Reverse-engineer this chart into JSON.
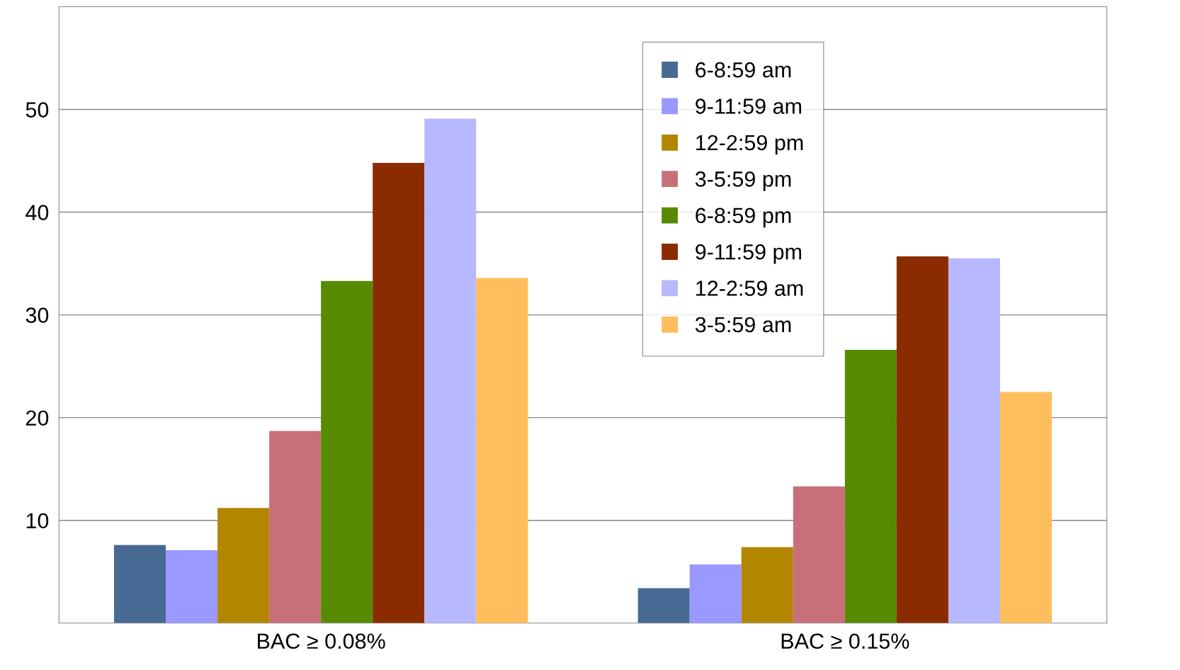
{
  "chart_data": {
    "type": "bar",
    "categories": [
      "BAC ≥ 0.08%",
      "BAC ≥ 0.15%"
    ],
    "series": [
      {
        "name": "6-8:59 am",
        "color": "#476a94",
        "values": [
          7.6,
          3.4
        ]
      },
      {
        "name": "9-11:59 am",
        "color": "#9999ff",
        "values": [
          7.1,
          5.7
        ]
      },
      {
        "name": "12-2:59 pm",
        "color": "#b38600",
        "values": [
          11.2,
          7.4
        ]
      },
      {
        "name": "3-5:59 pm",
        "color": "#c8707a",
        "values": [
          18.7,
          13.3
        ]
      },
      {
        "name": "6-8:59 pm",
        "color": "#578a00",
        "values": [
          33.3,
          26.6
        ]
      },
      {
        "name": "9-11:59 pm",
        "color": "#8b2c00",
        "values": [
          44.8,
          35.7
        ]
      },
      {
        "name": "12-2:59 am",
        "color": "#b8b8ff",
        "values": [
          49.1,
          35.5
        ]
      },
      {
        "name": "3-5:59 am",
        "color": "#ffbd5c",
        "values": [
          33.6,
          22.5
        ]
      }
    ],
    "ylim": [
      0,
      60
    ],
    "yticks": [
      10,
      20,
      30,
      40,
      50
    ],
    "grid": "y",
    "legend": "top right"
  }
}
